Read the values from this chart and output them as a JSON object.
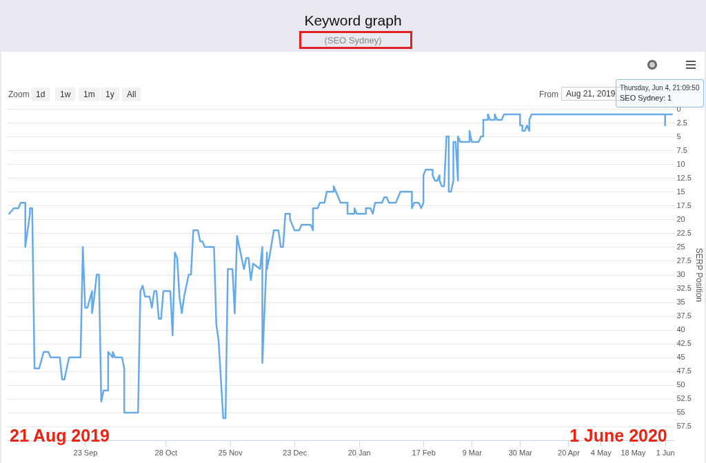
{
  "chart_data": {
    "type": "line",
    "title": "Keyword graph",
    "subtitle": "(SEO Sydney)",
    "ylabel": "SERP Position",
    "xlim": [
      "2019-08-20",
      "2020-06-05"
    ],
    "xticks": [
      {
        "value": "2019-09-23",
        "label": "23 Sep"
      },
      {
        "value": "2019-10-28",
        "label": "28 Oct"
      },
      {
        "value": "2019-11-25",
        "label": "25 Nov"
      },
      {
        "value": "2019-12-23",
        "label": "23 Dec"
      },
      {
        "value": "2020-01-20",
        "label": "20 Jan"
      },
      {
        "value": "2020-02-17",
        "label": "17 Feb"
      },
      {
        "value": "2020-03-09",
        "label": "9 Mar"
      },
      {
        "value": "2020-03-30",
        "label": "30 Mar"
      },
      {
        "value": "2020-04-20",
        "label": "20 Apr"
      },
      {
        "value": "2020-05-04",
        "label": "4 May"
      },
      {
        "value": "2020-05-18",
        "label": "18 May"
      },
      {
        "value": "2020-06-01",
        "label": "1 Jun"
      }
    ],
    "ylim": [
      60,
      0
    ],
    "yticks": [
      0,
      2.5,
      5,
      7.5,
      10,
      12.5,
      15,
      17.5,
      20,
      22.5,
      25,
      27.5,
      30,
      32.5,
      35,
      37.5,
      40,
      42.5,
      45,
      47.5,
      50,
      52.5,
      55,
      57.5
    ],
    "grid": "y",
    "x": [
      "2019-08-21",
      "2019-08-23",
      "2019-08-25",
      "2019-08-26",
      "2019-08-28",
      "2019-08-28",
      "2019-08-30",
      "2019-08-30",
      "2019-08-31",
      "2019-09-01",
      "2019-09-03",
      "2019-09-05",
      "2019-09-07",
      "2019-09-08",
      "2019-09-12",
      "2019-09-13",
      "2019-09-14",
      "2019-09-16",
      "2019-09-21",
      "2019-09-22",
      "2019-09-23",
      "2019-09-24",
      "2019-09-26",
      "2019-09-26",
      "2019-09-27",
      "2019-09-28",
      "2019-09-29",
      "2019-09-30",
      "2019-10-01",
      "2019-10-03",
      "2019-10-03",
      "2019-10-05",
      "2019-10-05",
      "2019-10-06",
      "2019-10-09",
      "2019-10-10",
      "2019-10-10",
      "2019-10-16",
      "2019-10-17",
      "2019-10-18",
      "2019-10-19",
      "2019-10-21",
      "2019-10-22",
      "2019-10-23",
      "2019-10-24",
      "2019-10-25",
      "2019-10-26",
      "2019-10-27",
      "2019-10-30",
      "2019-10-31",
      "2019-11-01",
      "2019-11-02",
      "2019-11-03",
      "2019-11-04",
      "2019-11-05",
      "2019-11-07",
      "2019-11-08",
      "2019-11-09",
      "2019-11-11",
      "2019-11-12",
      "2019-11-13",
      "2019-11-14",
      "2019-11-18",
      "2019-11-19",
      "2019-11-20",
      "2019-11-22",
      "2019-11-23",
      "2019-11-24",
      "2019-11-26",
      "2019-11-27",
      "2019-11-28",
      "2019-11-29",
      "2019-12-01",
      "2019-12-02",
      "2019-12-03",
      "2019-12-04",
      "2019-12-05",
      "2019-12-08",
      "2019-12-09",
      "2019-12-09",
      "2019-12-11",
      "2019-12-11",
      "2019-12-12",
      "2019-12-14",
      "2019-12-16",
      "2019-12-17",
      "2019-12-18",
      "2019-12-19",
      "2019-12-21",
      "2019-12-21",
      "2019-12-23",
      "2019-12-25",
      "2019-12-26",
      "2019-12-30",
      "2019-12-31",
      "2019-12-31",
      "2020-01-02",
      "2020-01-03",
      "2020-01-05",
      "2020-01-06",
      "2020-01-09",
      "2020-01-09",
      "2020-01-11",
      "2020-01-12",
      "2020-01-15",
      "2020-01-15",
      "2020-01-18",
      "2020-01-18",
      "2020-01-19",
      "2020-01-23",
      "2020-01-23",
      "2020-01-25",
      "2020-01-26",
      "2020-01-27",
      "2020-01-30",
      "2020-01-31",
      "2020-02-01",
      "2020-02-02",
      "2020-02-05",
      "2020-02-06",
      "2020-02-07",
      "2020-02-12",
      "2020-02-12",
      "2020-02-13",
      "2020-02-15",
      "2020-02-16",
      "2020-02-17",
      "2020-02-17",
      "2020-02-18",
      "2020-02-21",
      "2020-02-21",
      "2020-02-22",
      "2020-02-23",
      "2020-02-24",
      "2020-02-24",
      "2020-02-25",
      "2020-02-26",
      "2020-02-27",
      "2020-02-28",
      "2020-02-28",
      "2020-02-29",
      "2020-03-01",
      "2020-03-01",
      "2020-03-02",
      "2020-03-03",
      "2020-03-03",
      "2020-03-04",
      "2020-03-08",
      "2020-03-08",
      "2020-03-09",
      "2020-03-12",
      "2020-03-13",
      "2020-03-14",
      "2020-03-14",
      "2020-03-16",
      "2020-03-16",
      "2020-03-17",
      "2020-03-19",
      "2020-03-19",
      "2020-03-20",
      "2020-03-22",
      "2020-03-23",
      "2020-03-30",
      "2020-03-30",
      "2020-03-31",
      "2020-03-31",
      "2020-04-01",
      "2020-04-02",
      "2020-04-02",
      "2020-04-03",
      "2020-04-03",
      "2020-04-04",
      "2020-06-01",
      "2020-06-01",
      "2020-06-01",
      "2020-06-04"
    ],
    "series": [
      {
        "color": "#66aaea",
        "values": [
          19,
          18,
          18,
          17,
          17,
          25,
          19,
          18,
          18,
          47,
          47,
          44,
          44,
          45,
          45,
          49,
          49,
          45,
          45,
          25,
          36,
          36,
          33,
          37,
          34,
          30,
          30,
          53,
          51,
          51,
          44,
          45,
          44,
          45,
          45,
          47,
          55,
          55,
          33,
          32,
          34,
          34,
          36,
          33,
          33,
          38,
          38,
          33,
          33,
          41,
          26,
          27,
          34,
          37,
          34,
          30,
          30,
          22,
          22,
          24,
          24,
          25,
          25,
          39,
          42,
          56,
          56,
          29,
          29,
          37,
          23,
          25,
          29,
          27,
          27,
          31,
          28,
          29,
          25,
          46,
          26,
          29,
          27,
          22,
          22,
          25,
          25,
          19,
          19,
          20,
          22,
          22,
          21,
          21,
          22,
          18,
          18,
          17,
          17,
          15,
          15,
          14,
          16,
          17,
          17,
          19,
          19,
          18,
          19,
          19,
          18,
          18,
          19,
          17,
          17,
          16,
          16,
          17,
          17,
          16,
          15,
          15,
          18,
          17,
          17,
          18,
          17,
          12,
          11,
          11,
          12,
          13,
          13,
          12,
          13,
          14,
          14,
          5,
          5,
          15,
          15,
          13,
          6,
          6,
          13,
          5,
          6,
          6,
          4,
          6,
          6,
          5,
          5,
          2,
          2,
          1,
          2,
          2,
          1,
          2,
          2,
          1,
          1,
          3,
          3,
          4,
          4,
          3,
          3,
          4,
          2,
          1,
          1,
          3,
          1,
          1
        ]
      }
    ],
    "annotations": [
      "Zoom",
      "1d",
      "1w",
      "1m",
      "1y",
      "All",
      "From",
      "Aug 21, 2019",
      "Thursday, Jun 4, 21:09:50",
      "SEO Sydney: 1",
      "21 Aug 2019",
      "1 June 2020"
    ]
  }
}
